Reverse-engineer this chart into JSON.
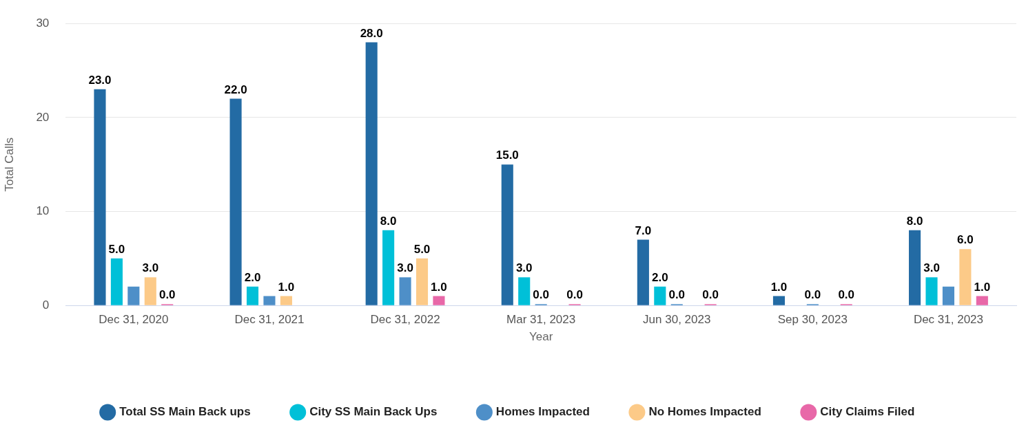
{
  "chart_data": {
    "type": "bar",
    "xlabel": "Year",
    "ylabel": "Total Calls",
    "categories": [
      "Dec 31, 2020",
      "Dec 31, 2021",
      "Dec 31, 2022",
      "Mar 31, 2023",
      "Jun 30, 2023",
      "Sep 30, 2023",
      "Dec 31, 2023"
    ],
    "series": [
      {
        "name": "Total SS Main Back ups",
        "color": "#236ba4",
        "values": [
          23,
          22,
          28,
          15,
          7,
          1,
          8
        ],
        "value_labels": [
          "23.0",
          "22.0",
          "28.0",
          "15.0",
          "7.0",
          "1.0",
          "8.0"
        ]
      },
      {
        "name": "City SS Main Back Ups",
        "color": "#00c0d8",
        "values": [
          5,
          2,
          8,
          3,
          2,
          null,
          3
        ],
        "value_labels": [
          "5.0",
          "2.0",
          "8.0",
          "3.0",
          "2.0",
          null,
          "3.0"
        ]
      },
      {
        "name": "Homes Impacted",
        "color": "#4e8fc8",
        "values": [
          2,
          1,
          3,
          0,
          0,
          0,
          2
        ],
        "value_labels": [
          null,
          null,
          "3.0",
          "0.0",
          "0.0",
          "0.0",
          null
        ]
      },
      {
        "name": "No Homes Impacted",
        "color": "#fcca88",
        "values": [
          3,
          1,
          5,
          null,
          null,
          null,
          6
        ],
        "value_labels": [
          "3.0",
          "1.0",
          "5.0",
          null,
          null,
          null,
          "6.0"
        ]
      },
      {
        "name": "City Claims Filed",
        "color": "#e868a8",
        "values": [
          0,
          null,
          1,
          0,
          0,
          0,
          1
        ],
        "value_labels": [
          "0.0",
          null,
          "1.0",
          "0.0",
          "0.0",
          "0.0",
          "1.0"
        ]
      }
    ],
    "ylim": [
      0,
      30
    ],
    "yticks": [
      0,
      10,
      20,
      30
    ],
    "grid": "y",
    "legend": "bottom",
    "marker": "circle"
  }
}
